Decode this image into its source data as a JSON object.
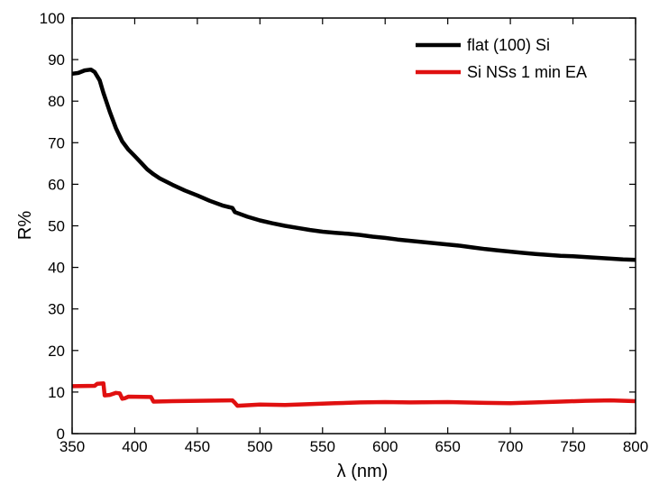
{
  "chart_data": {
    "type": "line",
    "xlabel": "λ (nm)",
    "ylabel": "R%",
    "xlim": [
      350,
      800
    ],
    "ylim": [
      0,
      100
    ],
    "xticks": [
      350,
      400,
      450,
      500,
      550,
      600,
      650,
      700,
      750,
      800
    ],
    "yticks": [
      0,
      10,
      20,
      30,
      40,
      50,
      60,
      70,
      80,
      90,
      100
    ],
    "grid": false,
    "legend_position": "top-right",
    "series": [
      {
        "name": "flat (100) Si",
        "color": "#000000",
        "points": [
          [
            350,
            86.6
          ],
          [
            355,
            86.8
          ],
          [
            360,
            87.4
          ],
          [
            365,
            87.6
          ],
          [
            368,
            87.0
          ],
          [
            372,
            85.0
          ],
          [
            375,
            82.0
          ],
          [
            380,
            77.5
          ],
          [
            385,
            73.5
          ],
          [
            390,
            70.3
          ],
          [
            395,
            68.3
          ],
          [
            400,
            66.8
          ],
          [
            405,
            65.2
          ],
          [
            410,
            63.6
          ],
          [
            415,
            62.4
          ],
          [
            420,
            61.4
          ],
          [
            430,
            59.9
          ],
          [
            440,
            58.5
          ],
          [
            450,
            57.3
          ],
          [
            460,
            56.0
          ],
          [
            470,
            54.9
          ],
          [
            478,
            54.3
          ],
          [
            480,
            53.3
          ],
          [
            490,
            52.2
          ],
          [
            500,
            51.3
          ],
          [
            510,
            50.6
          ],
          [
            520,
            50.0
          ],
          [
            530,
            49.5
          ],
          [
            540,
            49.0
          ],
          [
            550,
            48.6
          ],
          [
            560,
            48.3
          ],
          [
            570,
            48.1
          ],
          [
            580,
            47.8
          ],
          [
            590,
            47.4
          ],
          [
            600,
            47.1
          ],
          [
            610,
            46.7
          ],
          [
            620,
            46.4
          ],
          [
            630,
            46.1
          ],
          [
            640,
            45.8
          ],
          [
            650,
            45.5
          ],
          [
            660,
            45.2
          ],
          [
            670,
            44.8
          ],
          [
            680,
            44.4
          ],
          [
            690,
            44.1
          ],
          [
            700,
            43.8
          ],
          [
            710,
            43.5
          ],
          [
            720,
            43.2
          ],
          [
            730,
            43.0
          ],
          [
            740,
            42.8
          ],
          [
            750,
            42.7
          ],
          [
            760,
            42.5
          ],
          [
            770,
            42.3
          ],
          [
            780,
            42.1
          ],
          [
            790,
            41.9
          ],
          [
            800,
            41.8
          ]
        ]
      },
      {
        "name": "Si NSs 1 min EA",
        "color": "#e01010",
        "points": [
          [
            350,
            11.4
          ],
          [
            368,
            11.5
          ],
          [
            370,
            12.0
          ],
          [
            375,
            12.1
          ],
          [
            376,
            9.2
          ],
          [
            380,
            9.3
          ],
          [
            385,
            9.8
          ],
          [
            388,
            9.7
          ],
          [
            390,
            8.4
          ],
          [
            392,
            8.5
          ],
          [
            395,
            8.9
          ],
          [
            413,
            8.8
          ],
          [
            415,
            7.7
          ],
          [
            430,
            7.8
          ],
          [
            450,
            7.9
          ],
          [
            478,
            8.0
          ],
          [
            480,
            7.4
          ],
          [
            482,
            6.7
          ],
          [
            500,
            7.0
          ],
          [
            520,
            6.9
          ],
          [
            540,
            7.1
          ],
          [
            560,
            7.3
          ],
          [
            580,
            7.5
          ],
          [
            600,
            7.6
          ],
          [
            620,
            7.5
          ],
          [
            650,
            7.6
          ],
          [
            680,
            7.4
          ],
          [
            700,
            7.3
          ],
          [
            720,
            7.5
          ],
          [
            740,
            7.7
          ],
          [
            760,
            7.9
          ],
          [
            780,
            8.0
          ],
          [
            800,
            7.8
          ]
        ]
      }
    ]
  }
}
